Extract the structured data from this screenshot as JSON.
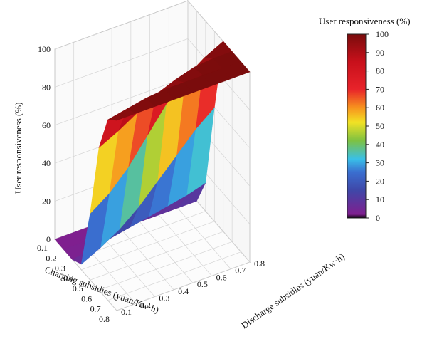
{
  "chart_data": {
    "type": "surface3d",
    "title": "",
    "xlabel": "Charging subsidies (yuan/Kw·h)",
    "ylabel": "Discharge subsidies (yuan/Kw·h)",
    "zlabel": "User responsiveness (%)",
    "x": [
      0.1,
      0.2,
      0.3,
      0.4,
      0.5,
      0.6,
      0.7,
      0.8
    ],
    "y": [
      0.1,
      0.2,
      0.3,
      0.4,
      0.5,
      0.6,
      0.7,
      0.8
    ],
    "xlim": [
      0.1,
      0.8
    ],
    "ylim": [
      0.1,
      0.8
    ],
    "zlim": [
      0,
      100
    ],
    "x_ticks": [
      "0.1",
      "0.2",
      "0.3",
      "0.4",
      "0.5",
      "0.6",
      "0.7",
      "0.8"
    ],
    "y_ticks": [
      "0.1",
      "0.2",
      "0.3",
      "0.4",
      "0.5",
      "0.6",
      "0.7",
      "0.8"
    ],
    "z_ticks": [
      "0",
      "20",
      "40",
      "60",
      "80",
      "100"
    ],
    "surface_description": "Response rises from 0 at low charging subsidy to 100 at high charging subsidy; the transition shifts to lower charging subsidy as discharge subsidy increases.",
    "z_rows_by_y": [
      [
        0,
        0,
        0,
        3,
        35,
        75,
        95,
        100
      ],
      [
        0,
        0,
        2,
        8,
        42,
        80,
        97,
        100
      ],
      [
        0,
        0,
        4,
        14,
        52,
        86,
        99,
        100
      ],
      [
        0,
        0,
        6,
        22,
        65,
        92,
        100,
        100
      ],
      [
        0,
        0,
        8,
        32,
        78,
        96,
        100,
        100
      ],
      [
        0,
        0,
        10,
        42,
        88,
        99,
        100,
        100
      ],
      [
        0,
        0,
        12,
        52,
        95,
        100,
        100,
        100
      ],
      [
        0,
        0,
        15,
        60,
        100,
        100,
        100,
        100
      ]
    ],
    "grid": true,
    "colorbar": {
      "title": "User responsiveness (%)",
      "ticks": [
        "0",
        "10",
        "20",
        "30",
        "40",
        "50",
        "60",
        "70",
        "80",
        "90",
        "100"
      ],
      "range": [
        0,
        100
      ],
      "colors": [
        "#000000",
        "#7f1f8f",
        "#3f47a8",
        "#3a6fd0",
        "#39c0e8",
        "#7dc142",
        "#f2e224",
        "#f7931e",
        "#e8232a",
        "#c8101b",
        "#7a0c0c"
      ]
    }
  }
}
